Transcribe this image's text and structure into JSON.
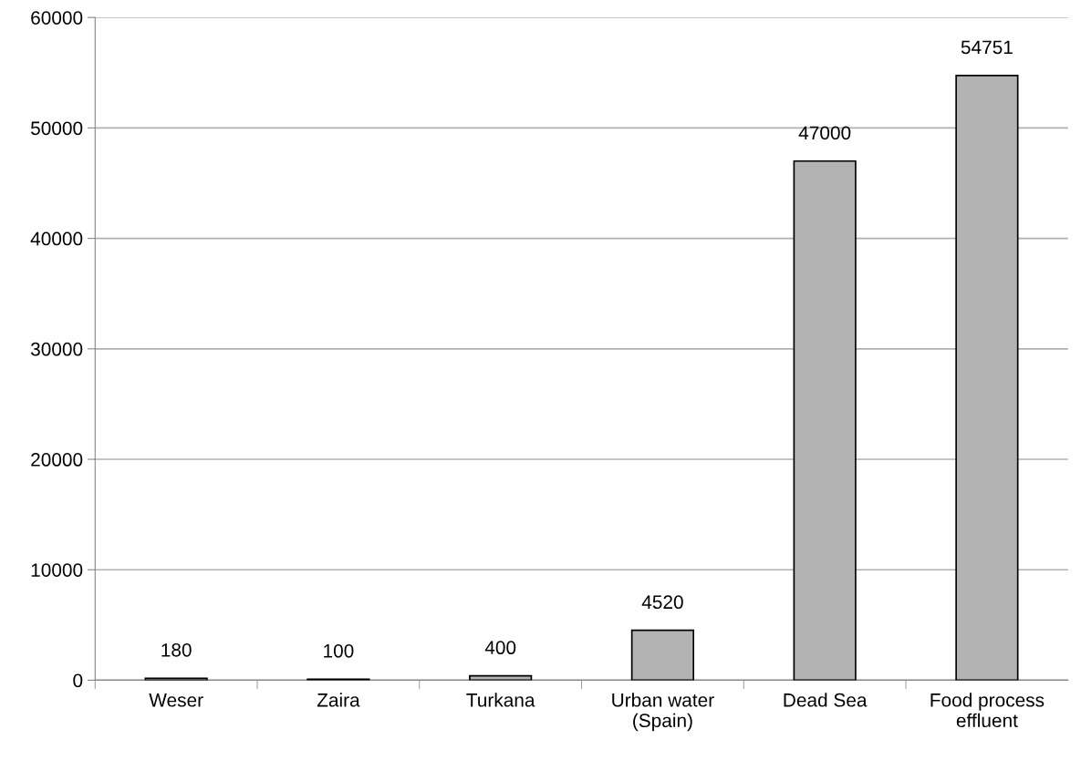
{
  "chart_data": {
    "type": "bar",
    "categories": [
      "Weser",
      "Zaira",
      "Turkana",
      "Urban water\n(Spain)",
      "Dead Sea",
      "Food process\neffluent"
    ],
    "values": [
      180,
      100,
      400,
      4520,
      47000,
      54751
    ],
    "color": "#b3b3b3",
    "ylim": [
      0,
      60000
    ],
    "yticks": [
      0,
      10000,
      20000,
      30000,
      40000,
      50000,
      60000
    ],
    "grid": "y",
    "data_labels": true
  }
}
